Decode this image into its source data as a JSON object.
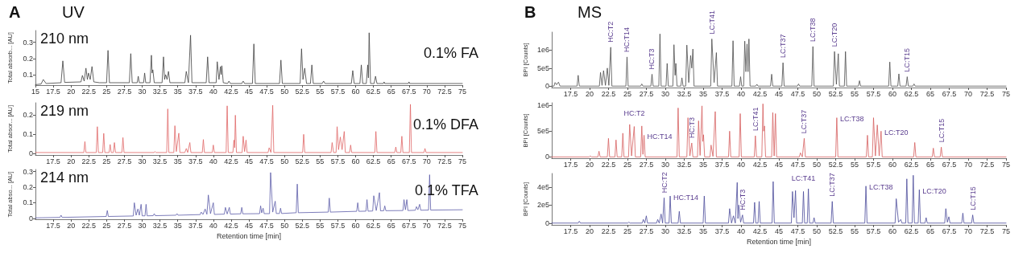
{
  "chart_data": [
    {
      "type": "line",
      "title": "A",
      "subtitle": "UV",
      "ylabel": "Total absorb... [AU]",
      "annotations": [
        "210 nm",
        "0.1% FA"
      ],
      "x": [
        15,
        15.8,
        16.1,
        16.5,
        18.6,
        18.85,
        19.1,
        21.4,
        21.6,
        21.85,
        22.1,
        22.3,
        22.45,
        22.7,
        22.95,
        23.2,
        24.0,
        25.0,
        25.2,
        25.4,
        28.2,
        28.4,
        28.6,
        29.3,
        29.45,
        29.6,
        30.2,
        30.35,
        30.5,
        31.1,
        31.3,
        31.4,
        31.5,
        31.7,
        32.8,
        33.0,
        33.15,
        33.3,
        33.5,
        33.7,
        33.9,
        36.0,
        36.2,
        36.5,
        36.8,
        37.0,
        39.0,
        39.2,
        39.4,
        40.4,
        40.55,
        40.8,
        41.0,
        41.1,
        41.2,
        41.4,
        42.0,
        42.2,
        42.4,
        44.0,
        44.2,
        44.4,
        45.5,
        45.7,
        45.9,
        49.3,
        49.5,
        49.7,
        52.2,
        52.4,
        52.6,
        52.85,
        53.1,
        53.65,
        53.85,
        54.05,
        55.3,
        55.5,
        55.7,
        59.4,
        59.6,
        59.8,
        60.6,
        60.8,
        61.0,
        61.5,
        61.7,
        61.8,
        61.9,
        62.1,
        62.6,
        62.8,
        63.0,
        63.9,
        64.0,
        64.1,
        67.4,
        67.5,
        67.6,
        75
      ],
      "series": [
        {
          "color": "#404040",
          "values": [
            0.038,
            0.042,
            0.07,
            0.045,
            0.05,
            0.185,
            0.052,
            0.055,
            0.095,
            0.06,
            0.14,
            0.07,
            0.11,
            0.07,
            0.15,
            0.055,
            0.05,
            0.05,
            0.25,
            0.05,
            0.05,
            0.23,
            0.05,
            0.05,
            0.09,
            0.05,
            0.05,
            0.11,
            0.05,
            0.05,
            0.22,
            0.11,
            0.13,
            0.05,
            0.05,
            0.21,
            0.07,
            0.1,
            0.07,
            0.12,
            0.05,
            0.05,
            0.12,
            0.05,
            0.344,
            0.05,
            0.05,
            0.21,
            0.05,
            0.05,
            0.18,
            0.07,
            0.15,
            0.1,
            0.155,
            0.05,
            0.045,
            0.06,
            0.045,
            0.045,
            0.06,
            0.045,
            0.045,
            0.29,
            0.045,
            0.045,
            0.19,
            0.045,
            0.045,
            0.26,
            0.07,
            0.14,
            0.045,
            0.045,
            0.16,
            0.045,
            0.045,
            0.06,
            0.045,
            0.045,
            0.125,
            0.045,
            0.045,
            0.16,
            0.045,
            0.045,
            0.16,
            0.08,
            0.359,
            0.045,
            0.045,
            0.09,
            0.045,
            0.045,
            0.055,
            0.045,
            0.045,
            0.055,
            0.045,
            0.045
          ]
        }
      ],
      "xlim": [
        15,
        75
      ],
      "ylim": [
        0.035,
        0.373
      ],
      "xticks": [
        15,
        17.5,
        20,
        22.5,
        25,
        27.5,
        30,
        32.5,
        35,
        37.5,
        40,
        42.5,
        45,
        47.5,
        50,
        52.5,
        55,
        57.5,
        60,
        62.5,
        65,
        67.5,
        70,
        72.5,
        75
      ],
      "yticks": [
        0.1,
        0.2,
        0.3
      ]
    },
    {
      "type": "line",
      "ylabel": "Total absor... [AU]",
      "annotations": [
        "219 nm",
        "0.1% DFA"
      ],
      "x": [
        15,
        21.8,
        21.95,
        22.1,
        23.55,
        23.7,
        23.85,
        24.45,
        24.6,
        24.75,
        25.35,
        25.5,
        25.65,
        25.95,
        26.1,
        26.25,
        27.15,
        27.3,
        27.45,
        31.65,
        31.8,
        31.95,
        33.45,
        33.6,
        33.75,
        34.45,
        34.6,
        34.8,
        35.15,
        35.3,
        36.0,
        36.2,
        36.4,
        36.7,
        36.85,
        38.45,
        38.6,
        38.75,
        39.85,
        40.0,
        40.15,
        41.8,
        41.95,
        42.1,
        42.75,
        42.9,
        43.0,
        43.1,
        43.25,
        44.05,
        44.2,
        44.4,
        44.6,
        44.75,
        47.7,
        47.85,
        48.1,
        48.35,
        48.5,
        52.55,
        52.7,
        52.85,
        56.55,
        56.7,
        56.9,
        57.25,
        57.4,
        57.6,
        57.85,
        58.1,
        58.4,
        58.55,
        59.15,
        59.3,
        59.45,
        62.7,
        62.85,
        63.0,
        65.5,
        65.65,
        65.8,
        66.35,
        66.5,
        66.65,
        67.55,
        67.7,
        67.85,
        69.6,
        69.75,
        69.9,
        75
      ],
      "series": [
        {
          "color": "#e06666",
          "values": [
            0.005,
            0.005,
            0.062,
            0.005,
            0.005,
            0.14,
            0.005,
            0.005,
            0.105,
            0.005,
            0.005,
            0.047,
            0.005,
            0.005,
            0.057,
            0.005,
            0.005,
            0.083,
            0.005,
            0.005,
            0.01,
            0.005,
            0.005,
            0.233,
            0.005,
            0.005,
            0.145,
            0.01,
            0.106,
            0.005,
            0.005,
            0.026,
            0.005,
            0.057,
            0.005,
            0.005,
            0.073,
            0.005,
            0.005,
            0.044,
            0.005,
            0.005,
            0.249,
            0.005,
            0.005,
            0.07,
            0.03,
            0.2,
            0.005,
            0.005,
            0.09,
            0.01,
            0.07,
            0.005,
            0.005,
            0.03,
            0.005,
            0.252,
            0.005,
            0.005,
            0.1,
            0.005,
            0.005,
            0.057,
            0.005,
            0.005,
            0.14,
            0.02,
            0.086,
            0.02,
            0.115,
            0.005,
            0.005,
            0.044,
            0.005,
            0.005,
            0.115,
            0.005,
            0.005,
            0.034,
            0.005,
            0.005,
            0.09,
            0.005,
            0.005,
            0.257,
            0.005,
            0.005,
            0.026,
            0.005,
            0.005
          ]
        }
      ],
      "xlim": [
        15,
        75
      ],
      "ylim": [
        -0.008,
        0.265
      ],
      "xticks": [
        17.5,
        20,
        22.5,
        25,
        27.5,
        30,
        32.5,
        35,
        37.5,
        40,
        42.5,
        45,
        47.5,
        50,
        52.5,
        55,
        57.5,
        60,
        62.5,
        65,
        67.5,
        70,
        72.5,
        75
      ],
      "yticks": [
        0,
        0.1,
        0.2
      ]
    },
    {
      "type": "line",
      "xlabel": "Retention time [min]",
      "ylabel": "Total abso... [AU]",
      "annotations": [
        "214 nm",
        "0.1% TFA"
      ],
      "x": [
        15,
        18.45,
        18.6,
        18.75,
        24.95,
        25.1,
        25.25,
        28.75,
        28.9,
        29.15,
        29.4,
        29.6,
        29.85,
        30.0,
        30.4,
        30.55,
        30.7,
        31.55,
        31.7,
        31.85,
        34.75,
        34.9,
        35.05,
        38.15,
        38.3,
        38.55,
        38.85,
        39.1,
        39.3,
        39.6,
        40.0,
        40.15,
        41.55,
        41.7,
        41.95,
        42.25,
        42.4,
        43.85,
        44.0,
        44.15,
        46.5,
        46.65,
        46.8,
        47.0,
        47.15,
        47.9,
        48.05,
        48.35,
        48.7,
        48.85,
        49.3,
        49.45,
        49.6,
        51.65,
        51.8,
        51.95,
        56.15,
        56.3,
        56.45,
        60.15,
        60.3,
        60.45,
        61.45,
        61.6,
        61.75,
        62.4,
        62.55,
        62.9,
        63.35,
        63.5,
        63.95,
        64.1,
        64.25,
        66.65,
        66.8,
        67.0,
        67.2,
        67.35,
        68.4,
        68.55,
        68.75,
        69.0,
        69.15,
        70.25,
        70.4,
        70.55,
        75
      ],
      "series": [
        {
          "color": "#5c5ca8",
          "values": [
            0.003,
            0.006,
            0.02,
            0.006,
            0.012,
            0.05,
            0.012,
            0.015,
            0.1,
            0.02,
            0.06,
            0.02,
            0.09,
            0.016,
            0.016,
            0.09,
            0.016,
            0.017,
            0.03,
            0.017,
            0.02,
            0.03,
            0.02,
            0.024,
            0.04,
            0.025,
            0.06,
            0.026,
            0.15,
            0.03,
            0.1,
            0.025,
            0.027,
            0.07,
            0.028,
            0.07,
            0.027,
            0.029,
            0.07,
            0.029,
            0.03,
            0.08,
            0.035,
            0.065,
            0.03,
            0.03,
            0.294,
            0.04,
            0.11,
            0.031,
            0.031,
            0.065,
            0.031,
            0.036,
            0.22,
            0.036,
            0.04,
            0.13,
            0.04,
            0.045,
            0.1,
            0.045,
            0.046,
            0.12,
            0.046,
            0.047,
            0.145,
            0.05,
            0.165,
            0.048,
            0.049,
            0.08,
            0.049,
            0.05,
            0.12,
            0.055,
            0.12,
            0.05,
            0.052,
            0.075,
            0.055,
            0.09,
            0.052,
            0.053,
            0.28,
            0.053,
            0.055
          ]
        }
      ],
      "xlim": [
        15,
        75
      ],
      "ylim": [
        -0.006,
        0.314
      ],
      "xticks": [
        17.5,
        20,
        22.5,
        25,
        27.5,
        30,
        32.5,
        35,
        37.5,
        40,
        42.5,
        45,
        47.5,
        50,
        52.5,
        55,
        57.5,
        60,
        62.5,
        65,
        67.5,
        70,
        72.5,
        75
      ],
      "yticks": [
        0,
        0.1,
        0.2,
        0.3
      ]
    },
    {
      "type": "line",
      "title": "B",
      "subtitle": "MS",
      "ylabel": "BPI [Counts]",
      "annotations": [
        {
          "text": "HC:T2",
          "x": 22.8,
          "y": 1080000
        },
        {
          "text": "HC:T14",
          "x": 24.95,
          "y": 810000
        },
        {
          "text": "HC:T3",
          "x": 28.25,
          "y": 330000
        },
        {
          "text": "LC:T41",
          "x": 36.15,
          "y": 1310000
        },
        {
          "text": "LC:T37",
          "x": 45.55,
          "y": 650000
        },
        {
          "text": "LC:T38",
          "x": 49.5,
          "y": 1100000
        },
        {
          "text": "LC:T20",
          "x": 52.35,
          "y": 960000
        },
        {
          "text": "LC:T15",
          "x": 61.95,
          "y": 260000
        }
      ],
      "x": [
        15,
        15.3,
        15.45,
        15.65,
        15.9,
        16.1,
        18.35,
        18.5,
        18.65,
        21.3,
        21.45,
        21.65,
        21.85,
        22.1,
        22.35,
        22.55,
        22.8,
        22.95,
        24.8,
        24.95,
        25.1,
        26.75,
        26.9,
        27.05,
        28.1,
        28.25,
        28.4,
        29.15,
        29.3,
        29.45,
        30.1,
        30.25,
        30.4,
        31.0,
        31.15,
        31.3,
        31.4,
        31.55,
        32.05,
        32.2,
        32.35,
        32.7,
        32.85,
        33.1,
        33.35,
        33.5,
        33.65,
        33.8,
        36.0,
        36.15,
        36.45,
        36.75,
        36.9,
        38.8,
        38.95,
        39.1,
        39.8,
        39.95,
        40.1,
        40.35,
        40.5,
        40.65,
        40.8,
        40.93,
        41.05,
        41.2,
        41.95,
        42.1,
        42.25,
        43.9,
        44.05,
        44.2,
        45.4,
        45.55,
        45.7,
        47.45,
        47.6,
        47.75,
        49.35,
        49.5,
        49.65,
        52.2,
        52.35,
        52.6,
        52.85,
        53.0,
        53.65,
        53.8,
        53.95,
        55.5,
        55.65,
        55.8,
        59.5,
        59.65,
        59.8,
        60.7,
        60.85,
        61.0,
        61.8,
        61.95,
        62.1,
        62.7,
        62.85,
        63.0,
        75
      ],
      "series": [
        {
          "color": "#4d4d4d",
          "values": [
            0,
            0,
            100000,
            40000,
            110000,
            0,
            0,
            300000,
            0,
            0,
            380000,
            20000,
            430000,
            20000,
            500000,
            20000,
            1080000,
            0,
            0,
            810000,
            0,
            0,
            60000,
            0,
            0,
            330000,
            0,
            0,
            1450000,
            0,
            0,
            630000,
            0,
            0,
            1150000,
            300000,
            630000,
            0,
            0,
            230000,
            0,
            0,
            1140000,
            100000,
            850000,
            500000,
            1030000,
            0,
            0,
            1310000,
            100000,
            930000,
            0,
            0,
            1260000,
            0,
            0,
            260000,
            0,
            0,
            1250000,
            400000,
            1170000,
            400000,
            1310000,
            0,
            0,
            50000,
            0,
            0,
            330000,
            0,
            0,
            650000,
            0,
            0,
            60000,
            0,
            0,
            1100000,
            0,
            0,
            960000,
            50000,
            900000,
            0,
            0,
            960000,
            0,
            0,
            150000,
            0,
            0,
            670000,
            0,
            0,
            340000,
            0,
            0,
            260000,
            0,
            0,
            60000,
            0,
            0
          ]
        }
      ],
      "xlim": [
        15,
        75
      ],
      "ylim": [
        -40000,
        1500000
      ],
      "xticks": [
        17.5,
        20,
        22.5,
        25,
        27.5,
        30,
        32.5,
        35,
        37.5,
        40,
        42.5,
        45,
        47.5,
        50,
        52.5,
        55,
        57.5,
        60,
        62.5,
        65,
        67.5,
        70,
        72.5,
        75
      ],
      "yticks": [
        0,
        {
          "value": 500000,
          "label": "5e5"
        },
        {
          "value": 1000000,
          "label": "1e6"
        }
      ]
    },
    {
      "type": "line",
      "ylabel": "BPI [Counts]",
      "annotations": [
        {
          "text": "HC:T2",
          "x": 25.9,
          "y": 590000
        },
        {
          "text": "HC:T14",
          "x": 27.2,
          "y": 420000
        },
        {
          "text": "HC:T3",
          "x": 33.5,
          "y": 270000
        },
        {
          "text": "LC:T41",
          "x": 41.9,
          "y": 410000
        },
        {
          "text": "LC:T37",
          "x": 48.35,
          "y": 360000
        },
        {
          "text": "LC:T38",
          "x": 52.65,
          "y": 760000
        },
        {
          "text": "LC:T20",
          "x": 58.5,
          "y": 500000
        },
        {
          "text": "LC:T15",
          "x": 66.45,
          "y": 190000
        }
      ],
      "x": [
        15,
        19.95,
        20.1,
        20.25,
        21.1,
        21.25,
        21.4,
        22.35,
        22.5,
        22.65,
        23.35,
        23.5,
        23.65,
        24.25,
        24.4,
        24.55,
        25.15,
        25.3,
        25.55,
        25.9,
        26.05,
        26.75,
        26.9,
        27.05,
        27.2,
        27.35,
        31.55,
        31.7,
        31.85,
        32.85,
        33.0,
        33.25,
        33.5,
        33.65,
        34.25,
        34.4,
        34.6,
        34.85,
        34.95,
        35.05,
        35.2,
        35.9,
        36.05,
        36.3,
        36.6,
        36.75,
        38.35,
        38.5,
        38.65,
        39.75,
        39.9,
        40.05,
        41.75,
        41.9,
        42.05,
        42.75,
        42.9,
        43.0,
        43.1,
        43.25,
        44.05,
        44.2,
        44.38,
        44.55,
        44.7,
        47.7,
        47.85,
        48.1,
        48.35,
        48.5,
        52.5,
        52.65,
        52.8,
        56.55,
        56.7,
        56.85,
        57.35,
        57.5,
        57.75,
        58.0,
        58.25,
        58.5,
        58.65,
        62.8,
        62.95,
        63.1,
        65.25,
        65.4,
        65.55,
        66.3,
        66.45,
        66.6,
        75
      ],
      "series": [
        {
          "color": "#d55e5e",
          "values": [
            0,
            0,
            20000,
            0,
            0,
            110000,
            0,
            0,
            360000,
            0,
            0,
            330000,
            0,
            0,
            460000,
            0,
            0,
            630000,
            20000,
            590000,
            0,
            0,
            600000,
            50000,
            420000,
            0,
            0,
            950000,
            0,
            0,
            760000,
            20000,
            270000,
            0,
            0,
            700000,
            30000,
            990000,
            300000,
            430000,
            0,
            0,
            230000,
            10000,
            880000,
            0,
            0,
            500000,
            0,
            0,
            840000,
            0,
            0,
            410000,
            0,
            0,
            1030000,
            500000,
            600000,
            0,
            0,
            860000,
            20000,
            840000,
            0,
            0,
            80000,
            0,
            360000,
            0,
            0,
            760000,
            0,
            0,
            420000,
            0,
            0,
            760000,
            20000,
            620000,
            20000,
            500000,
            0,
            0,
            280000,
            0,
            0,
            170000,
            0,
            0,
            190000,
            0,
            0
          ]
        }
      ],
      "xlim": [
        15,
        75
      ],
      "ylim": [
        -25000,
        1050000
      ],
      "xticks": [
        17.5,
        20,
        22.5,
        25,
        27.5,
        30,
        32.5,
        35,
        37.5,
        40,
        42.5,
        45,
        47.5,
        50,
        52.5,
        55,
        57.5,
        60,
        62.5,
        65,
        67.5,
        70,
        72.5,
        75
      ],
      "yticks": [
        0,
        {
          "value": 500000,
          "label": "5e5"
        },
        {
          "value": 1000000,
          "label": "1e6"
        }
      ]
    },
    {
      "type": "line",
      "xlabel": "Retention time [min]",
      "ylabel": "BPI [Counts]",
      "annotations": [
        {
          "text": "HC:T2",
          "x": 29.85,
          "y": 280000
        },
        {
          "text": "HC:T14",
          "x": 30.65,
          "y": 300000
        },
        {
          "text": "HC:T3",
          "x": 40.2,
          "y": 90000
        },
        {
          "text": "LC:T41",
          "x": 48.25,
          "y": 350000
        },
        {
          "text": "LC:T37",
          "x": 52.05,
          "y": 240000
        },
        {
          "text": "LC:T38",
          "x": 56.5,
          "y": 410000
        },
        {
          "text": "LC:T20",
          "x": 63.55,
          "y": 370000
        },
        {
          "text": "LC:T15",
          "x": 70.6,
          "y": 90000
        }
      ],
      "x": [
        15,
        18.5,
        18.65,
        18.8,
        25.05,
        25.2,
        25.35,
        26.95,
        27.1,
        27.3,
        27.5,
        27.65,
        28.85,
        29.0,
        29.2,
        29.45,
        29.65,
        29.85,
        30.0,
        30.5,
        30.65,
        30.8,
        31.7,
        31.85,
        32.0,
        35.0,
        35.15,
        35.3,
        38.35,
        38.5,
        38.75,
        39.0,
        39.25,
        39.5,
        39.6,
        39.7,
        39.95,
        40.2,
        40.35,
        41.65,
        41.8,
        41.95,
        42.25,
        42.4,
        42.55,
        44.1,
        44.25,
        44.4,
        46.65,
        46.8,
        47.0,
        47.2,
        47.35,
        48.1,
        48.25,
        48.4,
        48.75,
        48.9,
        49.05,
        49.5,
        49.65,
        49.8,
        51.9,
        52.05,
        52.2,
        56.35,
        56.5,
        56.65,
        60.35,
        60.5,
        60.8,
        61.1,
        61.25,
        61.75,
        61.9,
        62.05,
        62.6,
        62.75,
        62.9,
        63.4,
        63.55,
        63.7,
        64.3,
        64.45,
        64.6,
        66.9,
        67.05,
        67.25,
        67.45,
        67.6,
        69.15,
        69.3,
        69.45,
        70.45,
        70.6,
        70.75,
        75
      ],
      "series": [
        {
          "color": "#4b4b9a",
          "values": [
            0,
            0,
            20000,
            0,
            0,
            10000,
            0,
            0,
            40000,
            0,
            80000,
            0,
            0,
            40000,
            0,
            100000,
            0,
            280000,
            0,
            0,
            300000,
            0,
            0,
            130000,
            0,
            0,
            300000,
            0,
            0,
            160000,
            0,
            80000,
            0,
            450000,
            50000,
            200000,
            10000,
            90000,
            0,
            0,
            230000,
            0,
            0,
            240000,
            0,
            0,
            460000,
            0,
            0,
            350000,
            60000,
            360000,
            0,
            0,
            350000,
            0,
            0,
            380000,
            0,
            0,
            60000,
            0,
            0,
            240000,
            0,
            0,
            410000,
            0,
            0,
            270000,
            10000,
            40000,
            0,
            0,
            490000,
            0,
            0,
            530000,
            0,
            0,
            370000,
            0,
            0,
            60000,
            0,
            0,
            160000,
            10000,
            70000,
            0,
            0,
            110000,
            0,
            0,
            90000,
            0,
            0
          ]
        }
      ],
      "xlim": [
        15,
        75
      ],
      "ylim": [
        -20000,
        550000
      ],
      "xticks": [
        17.5,
        20,
        22.5,
        25,
        27.5,
        30,
        32.5,
        35,
        37.5,
        40,
        42.5,
        45,
        47.5,
        50,
        52.5,
        55,
        57.5,
        60,
        62.5,
        65,
        67.5,
        70,
        72.5,
        75
      ],
      "yticks": [
        0,
        {
          "value": 200000,
          "label": "2e5"
        },
        {
          "value": 400000,
          "label": "4e5"
        }
      ]
    }
  ]
}
